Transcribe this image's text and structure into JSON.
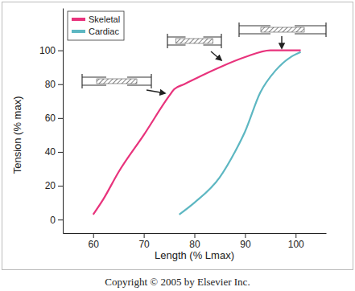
{
  "chart_data": {
    "type": "line",
    "x_label": "Length (% Lmax)",
    "y_label": "Tension (% max)",
    "caption": "Copyright © 2005 by Elsevier Inc.",
    "xlim": [
      54,
      106
    ],
    "ylim": [
      -8,
      125
    ],
    "xticks": [
      60,
      70,
      80,
      90,
      100
    ],
    "yticks": [
      0,
      20,
      40,
      60,
      80,
      100
    ],
    "legend": "upper left",
    "grid": false,
    "series": [
      {
        "name": "Skeletal",
        "color": "#e8337c",
        "x": [
          60,
          62,
          65,
          70,
          75,
          76,
          78,
          80,
          85,
          90,
          95,
          101
        ],
        "values": [
          3,
          12,
          28,
          50,
          73,
          77,
          80,
          83,
          90,
          96,
          100,
          100
        ]
      },
      {
        "name": "Cardiac",
        "color": "#5db7c2",
        "x": [
          77,
          80,
          85,
          88,
          90,
          93,
          96,
          99,
          101
        ],
        "values": [
          3,
          10,
          25,
          40,
          52,
          75,
          88,
          96,
          99
        ]
      }
    ]
  }
}
